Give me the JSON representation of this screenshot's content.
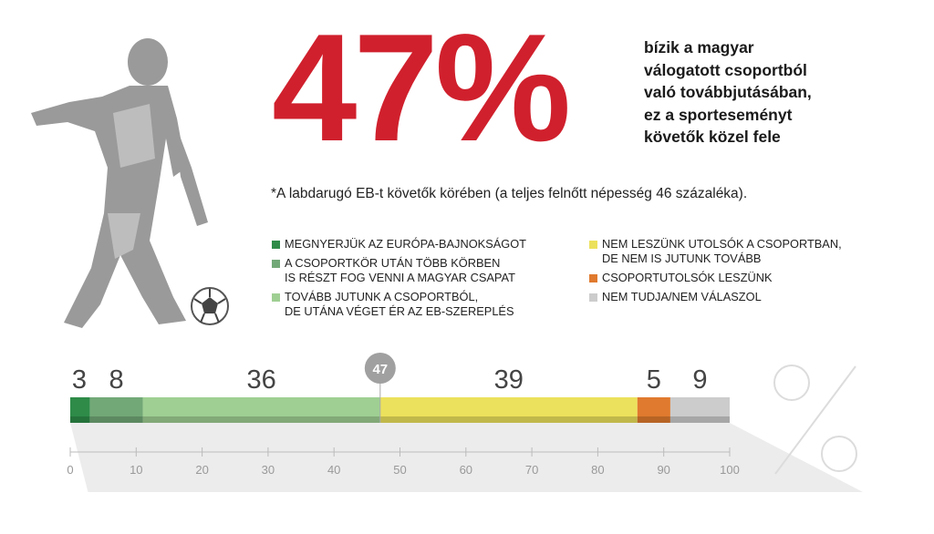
{
  "highlight": {
    "value": "47%",
    "description_lines": [
      "bízik a magyar",
      "válogatott csoportból",
      "való továbbjutásában,",
      "ez a sporteseményt",
      "követők közel fele"
    ]
  },
  "footnote": "*A labdarugó EB-t követők körében (a teljes felnőtt népesség 46 százaléka).",
  "colors": {
    "accent_red": "#d0202d",
    "segments": [
      "#2e8b48",
      "#72a877",
      "#9fcf93",
      "#ece15c",
      "#e07a2e",
      "#cccccc"
    ]
  },
  "chart_data": {
    "type": "bar",
    "orientation": "horizontal-stacked",
    "xlim": [
      0,
      100
    ],
    "xticks": [
      0,
      10,
      20,
      30,
      40,
      50,
      60,
      70,
      80,
      90,
      100
    ],
    "marker": {
      "value": 47,
      "label": "47"
    },
    "series": [
      {
        "name": "MEGNYERJÜK AZ EURÓPA-BAJNOKSÁGOT",
        "value": 3,
        "label": "3",
        "color": "#2e8b48"
      },
      {
        "name": "A CSOPORTKÖR UTÁN TÖBB KÖRBEN IS RÉSZT FOG VENNI A MAGYAR CSAPAT",
        "value": 8,
        "label": "8",
        "color": "#72a877"
      },
      {
        "name": "TOVÁBB JUTUNK A CSOPORTBÓL, DE UTÁNA VÉGET ÉR AZ EB-SZEREPLÉS",
        "value": 36,
        "label": "36",
        "color": "#9fcf93"
      },
      {
        "name": "NEM LESZÜNK UTOLSÓK A CSOPORTBAN, DE NEM IS JUTUNK TOVÁBB",
        "value": 39,
        "label": "39",
        "color": "#ece15c"
      },
      {
        "name": "CSOPORTUTOLSÓK LESZÜNK",
        "value": 5,
        "label": "5",
        "color": "#e07a2e"
      },
      {
        "name": "NEM TUDJA/NEM VÁLASZOL",
        "value": 9,
        "label": "9",
        "color": "#cccccc"
      }
    ]
  },
  "legend": {
    "left": [
      {
        "color": "#2e8b48",
        "lines": [
          "MEGNYERJÜK AZ EURÓPA-BAJNOKSÁGOT"
        ]
      },
      {
        "color": "#72a877",
        "lines": [
          "A CSOPORTKÖR UTÁN TÖBB KÖRBEN",
          "IS RÉSZT FOG VENNI A MAGYAR CSAPAT"
        ]
      },
      {
        "color": "#9fcf93",
        "lines": [
          "TOVÁBB JUTUNK A CSOPORTBÓL,",
          "DE UTÁNA VÉGET ÉR AZ EB-SZEREPLÉS"
        ]
      }
    ],
    "right": [
      {
        "color": "#ece15c",
        "lines": [
          "NEM LESZÜNK UTOLSÓK A CSOPORTBAN,",
          "DE NEM IS JUTUNK TOVÁBB"
        ]
      },
      {
        "color": "#e07a2e",
        "lines": [
          "CSOPORTUTOLSÓK LESZÜNK"
        ]
      },
      {
        "color": "#cccccc",
        "lines": [
          "NEM TUDJA/NEM VÁLASZOL"
        ]
      }
    ]
  }
}
